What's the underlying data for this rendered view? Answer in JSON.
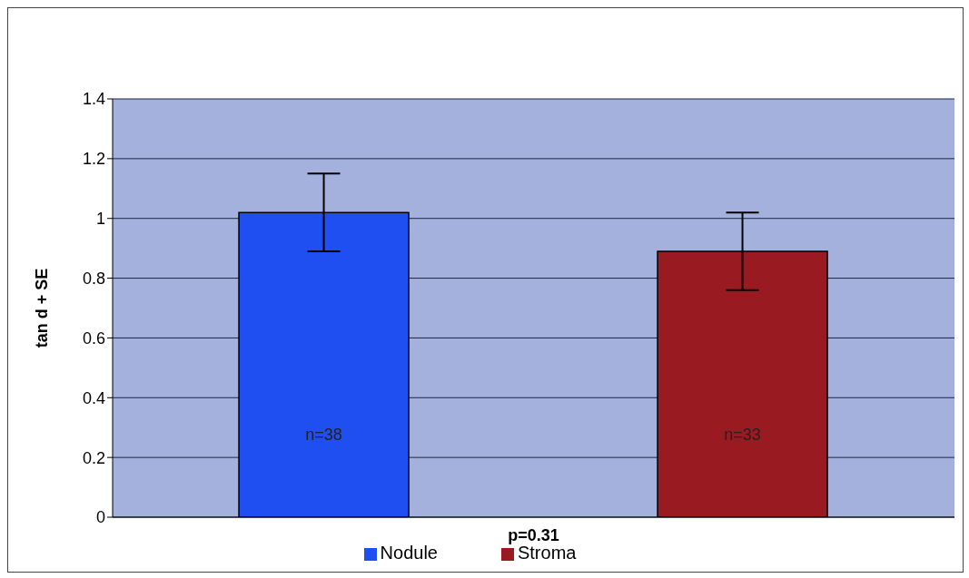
{
  "chart_data": {
    "type": "bar",
    "xlabel": "p=0.31",
    "ylabel": "tan d + SE",
    "categories": [
      null
    ],
    "series": [
      {
        "name": "Nodule",
        "color": "#1f4ff0",
        "values": [
          1.02
        ],
        "errors": [
          0.13
        ]
      },
      {
        "name": "Stroma",
        "color": "#9a1a22",
        "values": [
          0.89
        ],
        "errors": [
          0.13
        ]
      }
    ],
    "annotations": [
      "n=38",
      "n=33"
    ],
    "ylim": [
      0,
      1.4
    ],
    "yticks": [
      0,
      0.2,
      0.4,
      0.6,
      0.8,
      1,
      1.2,
      1.4
    ],
    "grid": "y",
    "legend": "bottom"
  }
}
